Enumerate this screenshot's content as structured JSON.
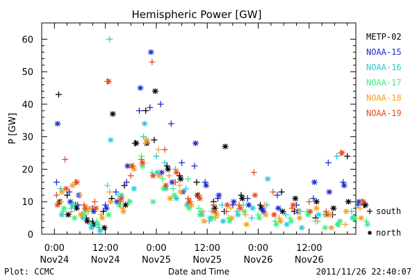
{
  "chart_data": {
    "type": "scatter",
    "title": "Hemispheric Power [GW]",
    "ylabel": "P [GW]",
    "xlabel": "Date and Time",
    "ylim": [
      0,
      65
    ],
    "yticks": [
      0,
      10,
      20,
      30,
      40,
      50,
      60
    ],
    "xlim": [
      "2011-11-23 21:00",
      "2011-11-26 23:00"
    ],
    "xticks": [
      {
        "time": "2011-11-24 00:00",
        "top": "0:00",
        "bottom": "Nov24"
      },
      {
        "time": "2011-11-24 12:00",
        "top": "12:00",
        "bottom": "Nov24"
      },
      {
        "time": "2011-11-25 00:00",
        "top": "0:00",
        "bottom": "Nov25"
      },
      {
        "time": "2011-11-25 12:00",
        "top": "12:00",
        "bottom": "Nov25"
      },
      {
        "time": "2011-11-26 00:00",
        "top": "0:00",
        "bottom": "Nov26"
      },
      {
        "time": "2011-11-26 12:00",
        "top": "12:00",
        "bottom": "Nov26"
      }
    ],
    "legend_position": "right",
    "marker_legend": [
      {
        "symbol": "+",
        "label": "south"
      },
      {
        "symbol": "*",
        "label": "north"
      }
    ],
    "series": [
      {
        "name": "METP-02",
        "color": "#000000",
        "x_hours": [
          1.0,
          3.0,
          5.0,
          7.5,
          9.0,
          11.5,
          13.5,
          16.5,
          19.0,
          21.5,
          23.5,
          26.5,
          29.5,
          33.5,
          37.5,
          40.0,
          44.0,
          48.5,
          53.5,
          56.5,
          61.5,
          65.5,
          69.0,
          73.0
        ],
        "south": [
          43,
          12,
          9,
          5,
          4,
          7,
          11,
          15,
          28,
          38,
          29,
          21,
          18,
          16,
          10,
          7,
          12,
          9,
          13,
          7,
          5,
          6,
          24,
          9
        ],
        "north": [
          10,
          6,
          8,
          4,
          3,
          2,
          37,
          9,
          28,
          28,
          44,
          20,
          17,
          12,
          8,
          27,
          11,
          8,
          7,
          11,
          10,
          8,
          10,
          9
        ]
      },
      {
        "name": "NOAA-15",
        "color": "#1c2bd2",
        "x_hours": [
          0.5,
          3.5,
          5.5,
          9.0,
          12.0,
          14.5,
          17.0,
          20.0,
          22.5,
          25.0,
          27.5,
          30.0,
          33.0,
          35.5,
          38.5,
          42.0,
          45.5,
          49.0,
          52.5,
          57.0,
          61.0,
          64.5,
          68.0,
          71.5
        ],
        "south": [
          16,
          13,
          9,
          8,
          9,
          13,
          16,
          38,
          39,
          40,
          34,
          22,
          21,
          16,
          11,
          9,
          11,
          8,
          12,
          9,
          11,
          22,
          16,
          9
        ],
        "north": [
          34,
          10,
          12,
          7,
          8,
          10,
          21,
          45,
          56,
          19,
          16,
          13,
          28,
          15,
          12,
          10,
          9,
          7,
          8,
          7,
          16,
          13,
          15,
          10
        ]
      },
      {
        "name": "NOAA-16",
        "color": "#29c8dc",
        "x_hours": [
          1.5,
          4.0,
          6.5,
          8.5,
          10.5,
          13.0,
          15.5,
          18.5,
          21.0,
          24.0,
          26.0,
          28.5,
          31.0,
          34.5,
          36.5,
          39.5,
          43.0,
          46.5,
          50.0,
          54.5,
          58.0,
          62.0,
          66.5,
          70.0
        ],
        "south": [
          14,
          8,
          6,
          3,
          2,
          60,
          9,
          21,
          30,
          24,
          22,
          20,
          14,
          7,
          4,
          9,
          7,
          5,
          9,
          6,
          7,
          4,
          24,
          7
        ],
        "north": [
          6,
          9,
          5,
          2,
          1,
          29,
          12,
          14,
          34,
          19,
          14,
          11,
          9,
          6,
          5,
          4,
          6,
          8,
          17,
          3,
          2,
          6,
          3,
          5
        ]
      },
      {
        "name": "NOAA-17",
        "color": "#3cf07e",
        "x_hours": [
          2.0,
          4.5,
          7.0,
          10.0,
          12.5,
          15.0,
          17.5,
          20.5,
          23.0,
          25.5,
          28.0,
          31.5,
          34.0,
          37.0,
          41.0,
          44.5,
          48.0,
          52.0,
          55.5,
          59.5,
          63.5,
          67.0,
          70.5,
          73.5
        ],
        "south": [
          7,
          9,
          6,
          4,
          15,
          12,
          10,
          24,
          19,
          17,
          14,
          17,
          8,
          7,
          5,
          9,
          6,
          4,
          5,
          7,
          6,
          3,
          5,
          4
        ],
        "north": [
          8,
          5,
          7,
          3,
          6,
          9,
          10,
          21,
          10,
          14,
          12,
          8,
          6,
          5,
          4,
          7,
          5,
          3,
          4,
          6,
          2,
          4,
          5,
          3
        ]
      },
      {
        "name": "NOAA-18",
        "color": "#f5a020",
        "x_hours": [
          1.5,
          4.0,
          6.0,
          8.0,
          11.0,
          13.0,
          16.0,
          18.5,
          21.5,
          24.5,
          27.0,
          29.5,
          32.0,
          35.0,
          38.0,
          41.5,
          45.0,
          49.5,
          53.0,
          57.5,
          61.5,
          65.0,
          68.5,
          72.0
        ],
        "south": [
          10,
          7,
          12,
          7,
          6,
          13,
          8,
          21,
          28,
          26,
          18,
          15,
          10,
          7,
          5,
          8,
          6,
          9,
          5,
          7,
          4,
          6,
          3,
          8
        ],
        "north": [
          13,
          15,
          6,
          8,
          5,
          10,
          7,
          20,
          29,
          18,
          11,
          13,
          9,
          4,
          6,
          5,
          3,
          6,
          4,
          5,
          8,
          2,
          7,
          5
        ]
      },
      {
        "name": "NOAA-19",
        "color": "#e84a1a",
        "x_hours": [
          0.5,
          2.5,
          5.0,
          7.0,
          9.5,
          12.5,
          15.5,
          18.0,
          20.5,
          23.0,
          26.0,
          28.5,
          31.5,
          34.0,
          37.5,
          40.5,
          43.5,
          47.0,
          51.5,
          56.0,
          60.0,
          64.0,
          67.5,
          72.5
        ],
        "south": [
          12,
          23,
          16,
          9,
          10,
          47,
          10,
          18,
          23,
          53,
          26,
          16,
          11,
          12,
          9,
          7,
          9,
          19,
          13,
          8,
          10,
          7,
          25,
          10
        ],
        "north": [
          9,
          14,
          16,
          8,
          8,
          47,
          11,
          21,
          22,
          18,
          15,
          19,
          10,
          11,
          7,
          9,
          8,
          12,
          6,
          9,
          7,
          6,
          25,
          10
        ]
      }
    ]
  },
  "footer": {
    "left": "Plot: CCMC",
    "right": "2011/11/26 22:40:07"
  }
}
